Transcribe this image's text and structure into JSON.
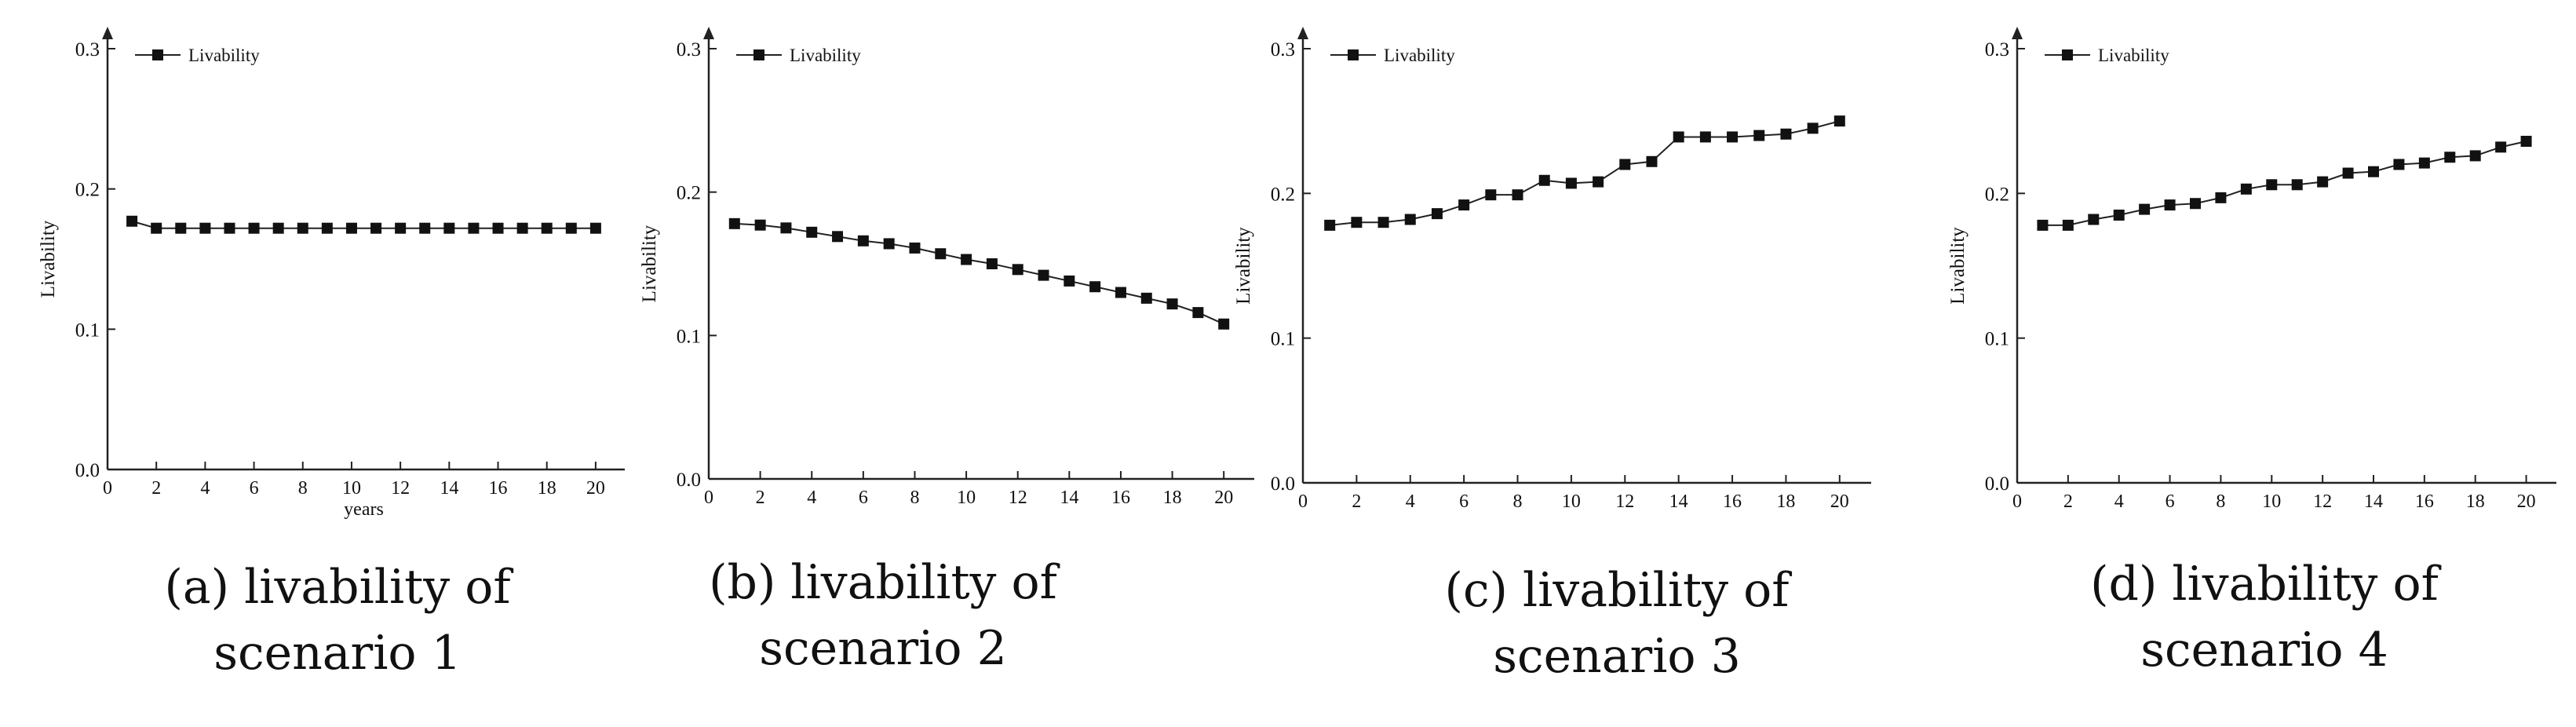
{
  "figure": {
    "captions": [
      {
        "line1": "(a) livability of",
        "line2": "scenario 1"
      },
      {
        "line1": "(b) livability of",
        "line2": "scenario 2"
      },
      {
        "line1": "(c) livability of",
        "line2": "scenario 3"
      },
      {
        "line1": "(d) livability of",
        "line2": "scenario 4"
      }
    ]
  },
  "chart_data": [
    {
      "type": "line",
      "title": "(a) livability of scenario 1",
      "xlabel": "years",
      "ylabel": "Livability",
      "legend": "Livability",
      "legend_position": "top-left",
      "xlim": [
        0,
        21
      ],
      "ylim": [
        0.0,
        0.3
      ],
      "xticks": [
        0,
        2,
        4,
        6,
        8,
        10,
        12,
        14,
        16,
        18,
        20
      ],
      "yticks": [
        "0.0",
        "0.1",
        "0.2",
        "0.3"
      ],
      "series": [
        {
          "name": "Livability",
          "x": [
            1,
            2,
            3,
            4,
            5,
            6,
            7,
            8,
            9,
            10,
            11,
            12,
            13,
            14,
            15,
            16,
            17,
            18,
            19,
            20
          ],
          "values": [
            0.177,
            0.172,
            0.172,
            0.172,
            0.172,
            0.172,
            0.172,
            0.172,
            0.172,
            0.172,
            0.172,
            0.172,
            0.172,
            0.172,
            0.172,
            0.172,
            0.172,
            0.172,
            0.172,
            0.172
          ]
        }
      ]
    },
    {
      "type": "line",
      "title": "(b) livability of scenario 2",
      "xlabel": "",
      "ylabel": "Livability",
      "legend": "Livability",
      "legend_position": "top-left",
      "xlim": [
        0,
        21
      ],
      "ylim": [
        0.0,
        0.3
      ],
      "xticks": [
        0,
        2,
        4,
        6,
        8,
        10,
        12,
        14,
        16,
        18,
        20
      ],
      "yticks": [
        "0.0",
        "0.1",
        "0.2",
        "0.3"
      ],
      "series": [
        {
          "name": "Livability",
          "x": [
            1,
            2,
            3,
            4,
            5,
            6,
            7,
            8,
            9,
            10,
            11,
            12,
            13,
            14,
            15,
            16,
            17,
            18,
            19,
            20
          ],
          "values": [
            0.178,
            0.177,
            0.175,
            0.172,
            0.169,
            0.166,
            0.164,
            0.161,
            0.157,
            0.153,
            0.15,
            0.146,
            0.142,
            0.138,
            0.134,
            0.13,
            0.126,
            0.122,
            0.116,
            0.108
          ]
        }
      ]
    },
    {
      "type": "line",
      "title": "(c) livability of scenario 3",
      "xlabel": "",
      "ylabel": "Livability",
      "legend": "Livability",
      "legend_position": "top-left",
      "xlim": [
        0,
        21
      ],
      "ylim": [
        0.0,
        0.3
      ],
      "xticks": [
        0,
        2,
        4,
        6,
        8,
        10,
        12,
        14,
        16,
        18,
        20
      ],
      "yticks": [
        "0.0",
        "0.1",
        "0.2",
        "0.3"
      ],
      "series": [
        {
          "name": "Livability",
          "x": [
            1,
            2,
            3,
            4,
            5,
            6,
            7,
            8,
            9,
            10,
            11,
            12,
            13,
            14,
            15,
            16,
            17,
            18,
            19,
            20
          ],
          "values": [
            0.178,
            0.18,
            0.18,
            0.182,
            0.186,
            0.192,
            0.199,
            0.199,
            0.209,
            0.207,
            0.208,
            0.22,
            0.222,
            0.239,
            0.239,
            0.239,
            0.24,
            0.241,
            0.245,
            0.25
          ]
        }
      ]
    },
    {
      "type": "line",
      "title": "(d) livability of scenario 4",
      "xlabel": "",
      "ylabel": "Livability",
      "legend": "Livability",
      "legend_position": "top-left",
      "xlim": [
        0,
        21
      ],
      "ylim": [
        0.0,
        0.3
      ],
      "xticks": [
        0,
        2,
        4,
        6,
        8,
        10,
        12,
        14,
        16,
        18,
        20
      ],
      "yticks": [
        "0.0",
        "0.1",
        "0.2",
        "0.3"
      ],
      "series": [
        {
          "name": "Livability",
          "x": [
            1,
            2,
            3,
            4,
            5,
            6,
            7,
            8,
            9,
            10,
            11,
            12,
            13,
            14,
            15,
            16,
            17,
            18,
            19,
            20
          ],
          "values": [
            0.178,
            0.178,
            0.182,
            0.185,
            0.189,
            0.192,
            0.193,
            0.197,
            0.203,
            0.206,
            0.206,
            0.208,
            0.214,
            0.215,
            0.22,
            0.221,
            0.225,
            0.226,
            0.232,
            0.236
          ]
        }
      ]
    }
  ]
}
